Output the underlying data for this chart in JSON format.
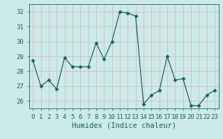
{
  "x": [
    0,
    1,
    2,
    3,
    4,
    5,
    6,
    7,
    8,
    9,
    10,
    11,
    12,
    13,
    14,
    15,
    16,
    17,
    18,
    19,
    20,
    21,
    22,
    23
  ],
  "y": [
    28.7,
    27.0,
    27.4,
    26.8,
    28.9,
    28.3,
    28.3,
    28.3,
    29.9,
    28.8,
    30.0,
    32.0,
    31.9,
    31.7,
    25.8,
    26.4,
    26.7,
    29.0,
    27.4,
    27.5,
    25.7,
    25.7,
    26.4,
    26.7
  ],
  "line_color": "#1a6060",
  "marker": "D",
  "marker_size": 2.5,
  "bg_color": "#cceaea",
  "grid_color": "#d8b8b8",
  "xlabel": "Humidex (Indice chaleur)",
  "ylim": [
    25.5,
    32.5
  ],
  "xlim": [
    -0.5,
    23.5
  ],
  "yticks": [
    26,
    27,
    28,
    29,
    30,
    31,
    32
  ],
  "xticks": [
    0,
    1,
    2,
    3,
    4,
    5,
    6,
    7,
    8,
    9,
    10,
    11,
    12,
    13,
    14,
    15,
    16,
    17,
    18,
    19,
    20,
    21,
    22,
    23
  ],
  "tick_label_fontsize": 6.5,
  "xlabel_fontsize": 7.5,
  "text_color": "#1a6060"
}
